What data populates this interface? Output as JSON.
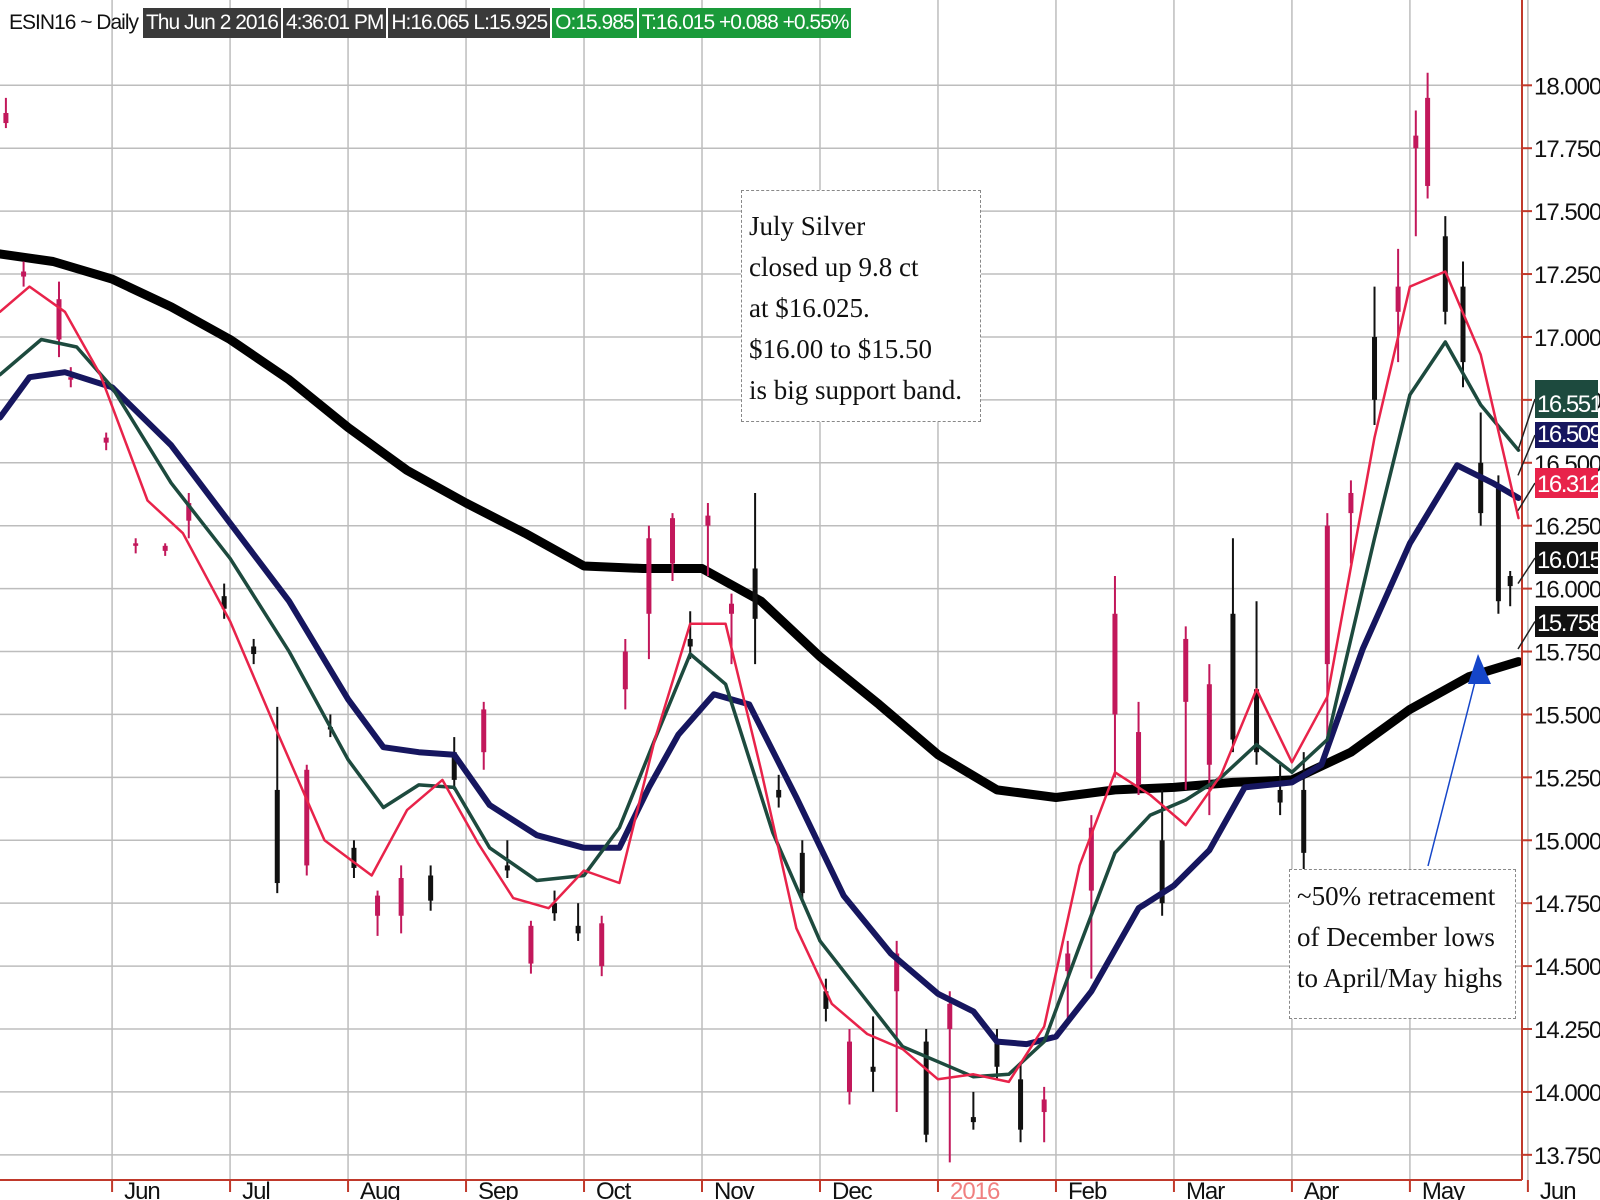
{
  "header": {
    "symbol": "ESIN16 ~ Daily",
    "date": "Thu Jun 2 2016",
    "time": "4:36:01 PM",
    "hl": "H:16.065  L:15.925",
    "open": "O:15.985",
    "last": "T:16.015  +0.088  +0.55%"
  },
  "annotations": {
    "note1": "July Silver\nclosed up 9.8 ct\nat $16.025.\n$16.00 to $15.50\nis big support band.",
    "note2": "~50% retracement\nof December lows\nto April/May highs"
  },
  "colors": {
    "background": "#ffffff",
    "grid": "#bdbdbd",
    "axis": "#c0392b",
    "ma_fast": "#e8234a",
    "ma_mid": "#1d4a3e",
    "ma_slow": "#16165f",
    "ma_long": "#000000",
    "candle_up": "#c2185b",
    "candle_down": "#111111",
    "arrow": "#1546c9",
    "year_label": "#f08080"
  },
  "chart_data": {
    "type": "line",
    "title": "ESIN16 ~ Daily",
    "ylim": [
      13.65,
      18.18
    ],
    "y_ticks": [
      18.0,
      17.75,
      17.5,
      17.25,
      17.0,
      16.75,
      16.5,
      16.25,
      16.0,
      15.75,
      15.5,
      15.25,
      15.0,
      14.75,
      14.5,
      14.25,
      14.0,
      13.75
    ],
    "y_tick_labels": [
      "18.000",
      "17.750",
      "17.500",
      "17.250",
      "17.000",
      "16.750",
      "16.500",
      "16.250",
      "16.000",
      "15.750",
      "15.500",
      "15.250",
      "15.000",
      "14.750",
      "14.500",
      "14.250",
      "14.000",
      "13.750"
    ],
    "x_range": [
      -0.95,
      11.95
    ],
    "x_ticks": [
      0,
      1,
      2,
      3,
      4,
      5,
      6,
      7,
      8,
      9,
      10,
      11,
      12
    ],
    "x_tick_labels": [
      "Jun",
      "Jul",
      "Aug",
      "Sep",
      "Oct",
      "Nov",
      "Dec",
      "2016",
      "Feb",
      "Mar",
      "Apr",
      "May",
      "Jun"
    ],
    "grid": true,
    "series": [
      {
        "key": "ma_long",
        "width": 9,
        "points": [
          [
            -0.95,
            17.33
          ],
          [
            -0.5,
            17.3
          ],
          [
            0,
            17.23
          ],
          [
            0.5,
            17.12
          ],
          [
            1,
            16.99
          ],
          [
            1.5,
            16.83
          ],
          [
            2,
            16.64
          ],
          [
            2.5,
            16.47
          ],
          [
            3,
            16.34
          ],
          [
            3.5,
            16.22
          ],
          [
            4,
            16.09
          ],
          [
            4.5,
            16.08
          ],
          [
            5,
            16.08
          ],
          [
            5.5,
            15.95
          ],
          [
            6,
            15.73
          ],
          [
            6.5,
            15.54
          ],
          [
            7,
            15.34
          ],
          [
            7.5,
            15.2
          ],
          [
            8,
            15.17
          ],
          [
            8.5,
            15.2
          ],
          [
            9,
            15.21
          ],
          [
            9.5,
            15.23
          ],
          [
            10,
            15.24
          ],
          [
            10.5,
            15.35
          ],
          [
            11,
            15.52
          ],
          [
            11.5,
            15.65
          ],
          [
            11.92,
            15.71
          ]
        ]
      },
      {
        "key": "ma_slow",
        "width": 6,
        "points": [
          [
            -0.95,
            16.68
          ],
          [
            -0.7,
            16.84
          ],
          [
            -0.4,
            16.86
          ],
          [
            0,
            16.8
          ],
          [
            0.5,
            16.57
          ],
          [
            1,
            16.26
          ],
          [
            1.5,
            15.95
          ],
          [
            2,
            15.56
          ],
          [
            2.3,
            15.37
          ],
          [
            2.6,
            15.35
          ],
          [
            2.9,
            15.34
          ],
          [
            3.2,
            15.14
          ],
          [
            3.6,
            15.02
          ],
          [
            4,
            14.97
          ],
          [
            4.3,
            14.97
          ],
          [
            4.55,
            15.21
          ],
          [
            4.8,
            15.42
          ],
          [
            5.1,
            15.58
          ],
          [
            5.4,
            15.54
          ],
          [
            5.8,
            15.17
          ],
          [
            6.2,
            14.78
          ],
          [
            6.6,
            14.55
          ],
          [
            7,
            14.39
          ],
          [
            7.3,
            14.32
          ],
          [
            7.5,
            14.2
          ],
          [
            7.75,
            14.19
          ],
          [
            8,
            14.22
          ],
          [
            8.3,
            14.4
          ],
          [
            8.7,
            14.73
          ],
          [
            9,
            14.82
          ],
          [
            9.3,
            14.96
          ],
          [
            9.6,
            15.21
          ],
          [
            10,
            15.23
          ],
          [
            10.25,
            15.3
          ],
          [
            10.6,
            15.76
          ],
          [
            11,
            16.18
          ],
          [
            11.4,
            16.49
          ],
          [
            11.7,
            16.42
          ],
          [
            11.92,
            16.36
          ]
        ]
      },
      {
        "key": "ma_mid",
        "width": 3.5,
        "points": [
          [
            -0.95,
            16.85
          ],
          [
            -0.6,
            16.99
          ],
          [
            -0.3,
            16.96
          ],
          [
            0,
            16.8
          ],
          [
            0.5,
            16.42
          ],
          [
            1,
            16.12
          ],
          [
            1.5,
            15.75
          ],
          [
            2,
            15.32
          ],
          [
            2.3,
            15.13
          ],
          [
            2.6,
            15.22
          ],
          [
            2.9,
            15.21
          ],
          [
            3.2,
            14.97
          ],
          [
            3.6,
            14.84
          ],
          [
            4,
            14.86
          ],
          [
            4.3,
            15.05
          ],
          [
            4.6,
            15.4
          ],
          [
            4.9,
            15.74
          ],
          [
            5.2,
            15.62
          ],
          [
            5.6,
            15.03
          ],
          [
            6,
            14.6
          ],
          [
            6.4,
            14.36
          ],
          [
            6.7,
            14.18
          ],
          [
            7,
            14.12
          ],
          [
            7.3,
            14.06
          ],
          [
            7.6,
            14.07
          ],
          [
            7.9,
            14.2
          ],
          [
            8.2,
            14.58
          ],
          [
            8.5,
            14.95
          ],
          [
            8.8,
            15.1
          ],
          [
            9.1,
            15.16
          ],
          [
            9.4,
            15.25
          ],
          [
            9.7,
            15.38
          ],
          [
            10,
            15.27
          ],
          [
            10.3,
            15.4
          ],
          [
            10.7,
            16.2
          ],
          [
            11,
            16.77
          ],
          [
            11.3,
            16.98
          ],
          [
            11.6,
            16.73
          ],
          [
            11.92,
            16.55
          ]
        ]
      },
      {
        "key": "ma_fast",
        "width": 2.5,
        "points": [
          [
            -0.95,
            17.1
          ],
          [
            -0.7,
            17.2
          ],
          [
            -0.4,
            17.1
          ],
          [
            -0.1,
            16.85
          ],
          [
            0.3,
            16.35
          ],
          [
            0.6,
            16.22
          ],
          [
            1,
            15.87
          ],
          [
            1.4,
            15.43
          ],
          [
            1.8,
            15.0
          ],
          [
            2.2,
            14.86
          ],
          [
            2.5,
            15.12
          ],
          [
            2.8,
            15.24
          ],
          [
            3.1,
            14.99
          ],
          [
            3.4,
            14.77
          ],
          [
            3.7,
            14.73
          ],
          [
            4,
            14.88
          ],
          [
            4.3,
            14.83
          ],
          [
            4.6,
            15.4
          ],
          [
            4.9,
            15.86
          ],
          [
            5.2,
            15.86
          ],
          [
            5.5,
            15.28
          ],
          [
            5.8,
            14.65
          ],
          [
            6.1,
            14.35
          ],
          [
            6.4,
            14.23
          ],
          [
            6.7,
            14.17
          ],
          [
            7,
            14.05
          ],
          [
            7.3,
            14.07
          ],
          [
            7.6,
            14.04
          ],
          [
            7.9,
            14.26
          ],
          [
            8.2,
            14.9
          ],
          [
            8.5,
            15.27
          ],
          [
            8.8,
            15.18
          ],
          [
            9.1,
            15.06
          ],
          [
            9.4,
            15.26
          ],
          [
            9.7,
            15.6
          ],
          [
            10,
            15.31
          ],
          [
            10.3,
            15.57
          ],
          [
            10.7,
            16.6
          ],
          [
            11,
            17.2
          ],
          [
            11.3,
            17.26
          ],
          [
            11.6,
            16.93
          ],
          [
            11.92,
            16.28
          ]
        ]
      }
    ],
    "last_values": [
      {
        "key": "ma_mid",
        "label": "16.551",
        "y": 16.55
      },
      {
        "key": "ma_slow",
        "label": "16.509",
        "y": 16.45
      },
      {
        "key": "ma_fast",
        "label": "16.312",
        "y": 16.31
      },
      {
        "key": "price",
        "label": "16.015",
        "y": 16.02
      },
      {
        "key": "ma_long",
        "label": "15.758",
        "y": 15.76
      }
    ],
    "candles": [
      [
        -0.9,
        17.85,
        17.95,
        17.83,
        17.89
      ],
      [
        -0.75,
        17.24,
        17.3,
        17.2,
        17.26
      ],
      [
        -0.45,
        16.99,
        17.22,
        16.92,
        17.15
      ],
      [
        -0.35,
        16.83,
        16.88,
        16.8,
        16.84
      ],
      [
        -0.05,
        16.58,
        16.62,
        16.55,
        16.6
      ],
      [
        0.2,
        16.17,
        16.2,
        16.14,
        16.18
      ],
      [
        0.45,
        16.15,
        16.18,
        16.13,
        16.17
      ],
      [
        0.65,
        16.27,
        16.38,
        16.2,
        16.34
      ],
      [
        0.95,
        15.97,
        16.02,
        15.88,
        15.92
      ],
      [
        1.2,
        15.77,
        15.8,
        15.7,
        15.74
      ],
      [
        1.4,
        15.2,
        15.53,
        14.79,
        14.83
      ],
      [
        1.65,
        14.9,
        15.3,
        14.86,
        15.28
      ],
      [
        1.85,
        15.45,
        15.5,
        15.41,
        15.44
      ],
      [
        2.05,
        14.97,
        15.0,
        14.85,
        14.89
      ],
      [
        2.25,
        14.7,
        14.8,
        14.62,
        14.78
      ],
      [
        2.45,
        14.7,
        14.9,
        14.63,
        14.85
      ],
      [
        2.7,
        14.86,
        14.9,
        14.72,
        14.76
      ],
      [
        2.9,
        15.35,
        15.41,
        15.2,
        15.24
      ],
      [
        3.15,
        15.35,
        15.55,
        15.28,
        15.52
      ],
      [
        3.35,
        14.9,
        15.0,
        14.85,
        14.88
      ],
      [
        3.55,
        14.51,
        14.68,
        14.47,
        14.66
      ],
      [
        3.75,
        14.75,
        14.8,
        14.68,
        14.71
      ],
      [
        3.95,
        14.66,
        14.75,
        14.6,
        14.63
      ],
      [
        4.15,
        14.5,
        14.7,
        14.46,
        14.67
      ],
      [
        4.35,
        15.6,
        15.8,
        15.52,
        15.75
      ],
      [
        4.55,
        15.9,
        16.25,
        15.72,
        16.2
      ],
      [
        4.75,
        16.1,
        16.3,
        16.03,
        16.28
      ],
      [
        4.9,
        15.8,
        15.91,
        15.72,
        15.77
      ],
      [
        5.05,
        16.25,
        16.34,
        16.05,
        16.29
      ],
      [
        5.25,
        15.9,
        15.98,
        15.7,
        15.94
      ],
      [
        5.45,
        16.08,
        16.38,
        15.7,
        15.88
      ],
      [
        5.65,
        15.2,
        15.26,
        15.13,
        15.17
      ],
      [
        5.85,
        14.95,
        15.0,
        14.76,
        14.79
      ],
      [
        6.05,
        14.4,
        14.45,
        14.28,
        14.33
      ],
      [
        6.25,
        14.0,
        14.25,
        13.95,
        14.2
      ],
      [
        6.45,
        14.1,
        14.3,
        14.0,
        14.08
      ],
      [
        6.65,
        14.4,
        14.6,
        13.92,
        14.55
      ],
      [
        6.9,
        14.2,
        14.25,
        13.8,
        13.83
      ],
      [
        7.1,
        14.25,
        14.4,
        13.72,
        14.35
      ],
      [
        7.3,
        13.9,
        14.0,
        13.85,
        13.88
      ],
      [
        7.5,
        14.2,
        14.25,
        14.05,
        14.1
      ],
      [
        7.7,
        14.05,
        14.12,
        13.8,
        13.85
      ],
      [
        7.9,
        13.92,
        14.02,
        13.8,
        13.97
      ],
      [
        8.1,
        14.48,
        14.6,
        14.27,
        14.55
      ],
      [
        8.3,
        14.8,
        15.1,
        14.45,
        15.05
      ],
      [
        8.5,
        15.5,
        16.05,
        15.25,
        15.9
      ],
      [
        8.7,
        15.22,
        15.55,
        15.18,
        15.43
      ],
      [
        8.9,
        15.0,
        15.2,
        14.7,
        14.75
      ],
      [
        9.1,
        15.55,
        15.85,
        15.2,
        15.8
      ],
      [
        9.3,
        15.3,
        15.7,
        15.1,
        15.62
      ],
      [
        9.5,
        15.9,
        16.2,
        15.35,
        15.4
      ],
      [
        9.7,
        15.6,
        15.95,
        15.3,
        15.35
      ],
      [
        9.9,
        15.2,
        15.3,
        15.1,
        15.15
      ],
      [
        10.1,
        15.2,
        15.35,
        14.85,
        14.95
      ],
      [
        10.3,
        15.7,
        16.3,
        15.4,
        16.25
      ],
      [
        10.5,
        16.3,
        16.43,
        16.1,
        16.38
      ],
      [
        10.7,
        17.0,
        17.2,
        16.65,
        16.75
      ],
      [
        10.9,
        17.1,
        17.35,
        16.9,
        17.2
      ],
      [
        11.05,
        17.75,
        17.9,
        17.4,
        17.8
      ],
      [
        11.15,
        17.6,
        18.05,
        17.55,
        17.95
      ],
      [
        11.3,
        17.4,
        17.48,
        17.05,
        17.1
      ],
      [
        11.45,
        17.2,
        17.3,
        16.8,
        16.9
      ],
      [
        11.6,
        16.5,
        16.7,
        16.25,
        16.3
      ],
      [
        11.75,
        16.4,
        16.45,
        15.9,
        15.95
      ],
      [
        11.85,
        16.05,
        16.07,
        15.93,
        16.01
      ]
    ]
  }
}
